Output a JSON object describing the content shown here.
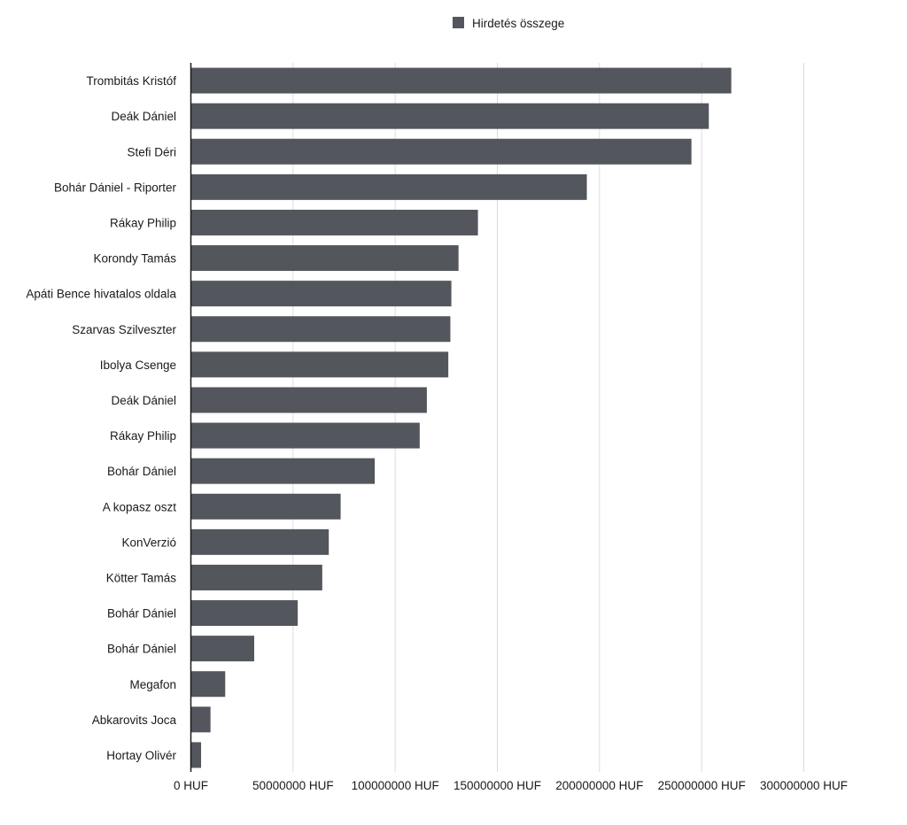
{
  "chart_data": {
    "type": "bar",
    "orientation": "horizontal",
    "title": "",
    "xlabel": "",
    "ylabel": "",
    "categories": [
      "Trombitás Kristóf",
      "Deák Dániel",
      "Stefi Déri",
      "Bohár Dániel - Riporter",
      "Rákay Philip",
      "Korondy Tamás",
      "Apáti Bence hivatalos oldala",
      "Szarvas Szilveszter",
      "Ibolya Csenge",
      "Deák Dániel",
      "Rákay Philip",
      "Bohár Dániel",
      "A kopasz oszt",
      "KonVerzió",
      "Kötter Tamás",
      "Bohár Dániel",
      "Bohár Dániel",
      "Megafon",
      "Abkarovits Joca",
      "Hortay Olivér"
    ],
    "series": [
      {
        "name": "Hirdetés összege",
        "color": "#53565c",
        "values": [
          264500000,
          253500000,
          245000000,
          193800000,
          140500000,
          131000000,
          127500000,
          127000000,
          126000000,
          115500000,
          112000000,
          90000000,
          73300000,
          67500000,
          64300000,
          52300000,
          31000000,
          16800000,
          9600000,
          5000000
        ]
      }
    ],
    "xlim": [
      0,
      300000000
    ],
    "xticks": [
      0,
      50000000,
      100000000,
      150000000,
      200000000,
      250000000,
      300000000
    ],
    "xtick_labels": [
      "0 HUF",
      "50000000 HUF",
      "100000000 HUF",
      "150000000 HUF",
      "200000000 HUF",
      "250000000 HUF",
      "300000000 HUF"
    ],
    "grid": true,
    "legend_position": "top-center"
  }
}
